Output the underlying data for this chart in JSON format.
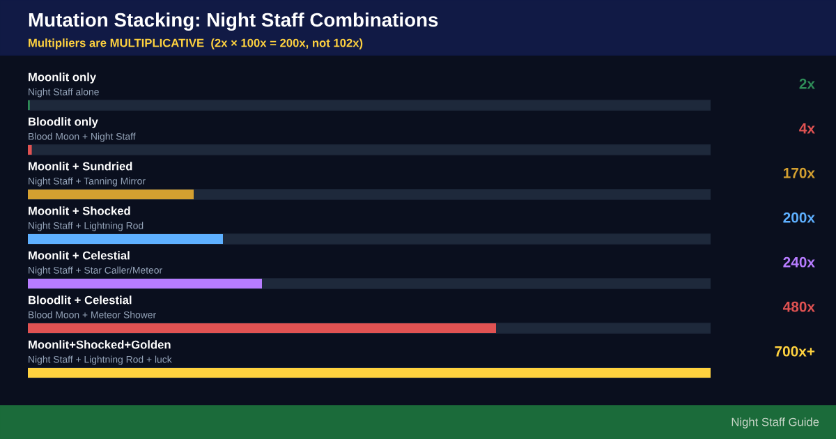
{
  "chart_data": {
    "type": "bar",
    "orientation": "horizontal",
    "title": "Mutation Stacking: Night Staff Combinations",
    "subtitle": "Multipliers are MULTIPLICATIVE  (2x × 100x = 200x, not 102x)",
    "categories": [
      "Moonlit only\nNight Staff alone",
      "Bloodlit only\nBlood Moon + Night Staff",
      "Moonlit + Sundried\nNight Staff + Tanning Mirror",
      "Moonlit + Shocked\nNight Staff + Lightning Rod",
      "Moonlit + Celestial\nNight Staff + Star Caller/Meteor",
      "Bloodlit + Celestial\nBlood Moon + Meteor Shower",
      "Moonlit+Shocked+Golden\nNight Staff + Lightning Rod + luck"
    ],
    "values": [
      2,
      4,
      170,
      200,
      240,
      480,
      700
    ],
    "value_labels": [
      "2x",
      "4x",
      "170x",
      "200x",
      "240x",
      "480x",
      "700x+"
    ],
    "colors": [
      "#2e8b57",
      "#e05252",
      "#d4a030",
      "#5eb0ff",
      "#b77cff",
      "#e05252",
      "#ffd23f"
    ],
    "annotations": [
      "Night Staff Guide"
    ],
    "legend": false
  }
}
